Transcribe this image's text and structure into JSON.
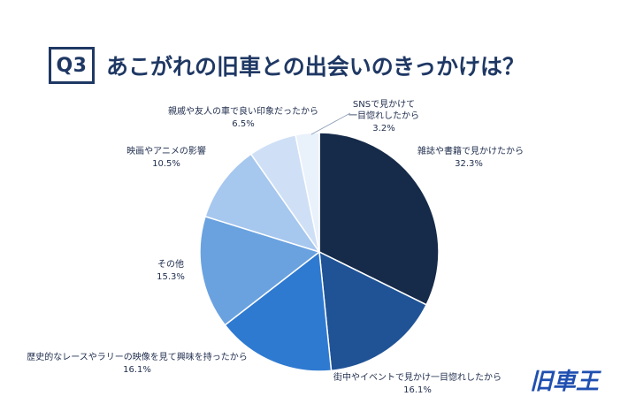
{
  "question": {
    "number": "Q3",
    "text": "あこがれの旧車との出会いのきっかけは？"
  },
  "brand": {
    "logo_text": "旧車王",
    "color": "#1f4fb0"
  },
  "chart_data": {
    "type": "pie",
    "title": "あこがれの旧車との出会いのきっかけは？",
    "slices": [
      {
        "lines": [
          "雑誌や書籍で見かけたから"
        ],
        "value_label": "32.3%",
        "value": 32.3,
        "color": "#162a49"
      },
      {
        "lines": [
          "街中やイベントで見かけ一目惚れしたから"
        ],
        "value_label": "16.1%",
        "value": 16.1,
        "color": "#1f5396"
      },
      {
        "lines": [
          "歴史的なレースやラリーの映像を見て興味を持ったから"
        ],
        "value_label": "16.1%",
        "value": 16.1,
        "color": "#2f7ad1"
      },
      {
        "lines": [
          "その他"
        ],
        "value_label": "15.3%",
        "value": 15.3,
        "color": "#6aa2e0"
      },
      {
        "lines": [
          "映画やアニメの影響"
        ],
        "value_label": "10.5%",
        "value": 10.5,
        "color": "#a6c7ee"
      },
      {
        "lines": [
          "親戚や友人の車で良い印象だったから"
        ],
        "value_label": "6.5%",
        "value": 6.5,
        "color": "#cfe0f6"
      },
      {
        "lines": [
          "SNSで見かけて",
          "一目惚れしたから"
        ],
        "value_label": "3.2%",
        "value": 3.2,
        "color": "#e9f1fb"
      }
    ]
  }
}
